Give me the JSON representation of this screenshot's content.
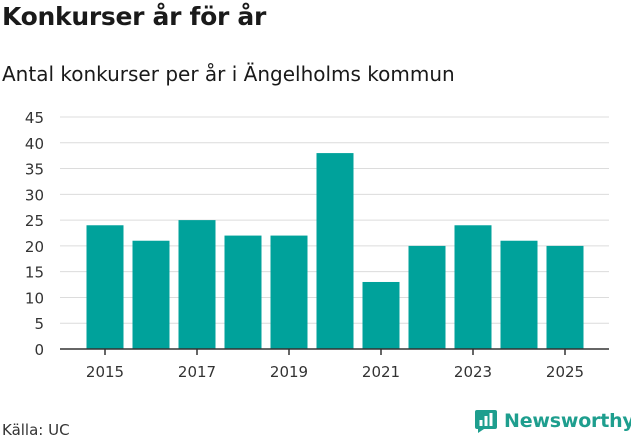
{
  "header": {
    "title": "Konkurser år för år",
    "subtitle": "Antal konkurser per år i Ängelholms kommun"
  },
  "footer": {
    "source": "Källa: UC",
    "brand": "Newsworthy",
    "brand_icon": "newsworthy-logo-icon"
  },
  "colors": {
    "bar": "#00a29b",
    "grid": "#dcdcdc",
    "axis": "#333333",
    "brand": "#1e9e8e"
  },
  "chart_data": {
    "type": "bar",
    "title": "Antal konkurser per år i Ängelholms kommun",
    "xlabel": "",
    "ylabel": "",
    "categories": [
      "2015",
      "2016",
      "2017",
      "2018",
      "2019",
      "2020",
      "2021",
      "2022",
      "2023",
      "2024",
      "2025"
    ],
    "values": [
      24,
      21,
      25,
      22,
      22,
      38,
      13,
      20,
      24,
      21,
      20
    ],
    "xtick_labels": [
      "2015",
      "2017",
      "2019",
      "2021",
      "2023",
      "2025"
    ],
    "yticks": [
      0,
      5,
      10,
      15,
      20,
      25,
      30,
      35,
      40,
      45
    ],
    "ylim": [
      0,
      45
    ],
    "grid": true,
    "legend": "none"
  }
}
